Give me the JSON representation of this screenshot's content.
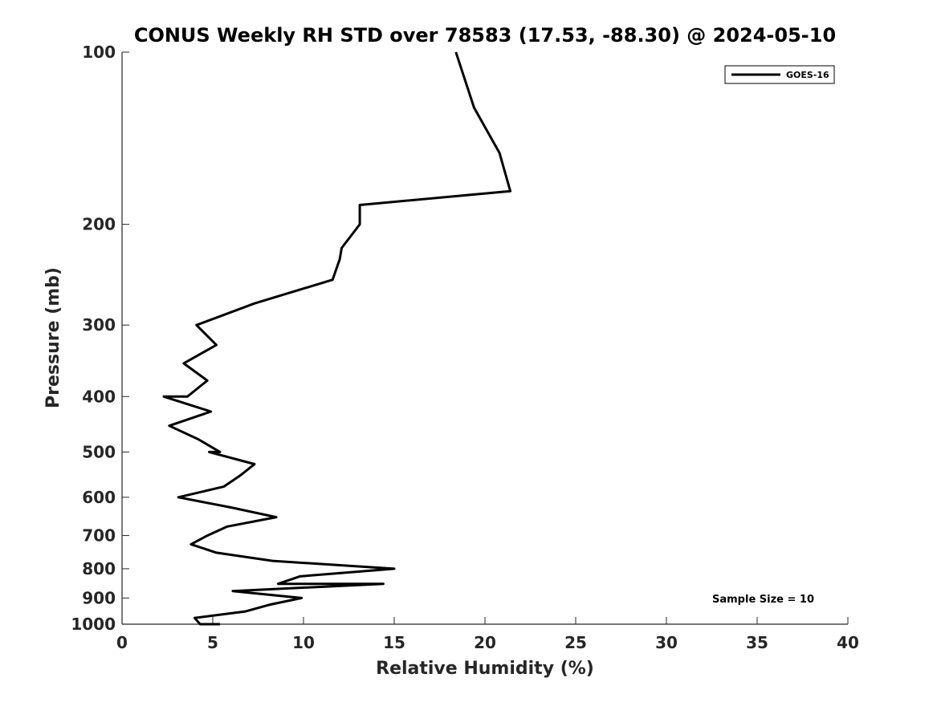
{
  "chart_data": {
    "type": "line",
    "title": "CONUS Weekly RH STD over 78583 (17.53, -88.30) @ 2024-05-10",
    "xlabel": "Relative Humidity (%)",
    "ylabel": "Pressure (mb)",
    "xlim": [
      0,
      40
    ],
    "ylim": [
      100,
      1000
    ],
    "yscale": "log",
    "yreversed": true,
    "xticks": [
      0,
      5,
      10,
      15,
      20,
      25,
      30,
      35,
      40
    ],
    "yticks": [
      100,
      200,
      300,
      400,
      500,
      600,
      700,
      800,
      900,
      1000
    ],
    "grid": false,
    "legend_position": "top-right",
    "series": [
      {
        "name": "GOES-16",
        "color": "#000000",
        "points": [
          [
            18.4,
            100
          ],
          [
            19.4,
            125
          ],
          [
            20.8,
            150
          ],
          [
            21.4,
            175
          ],
          [
            13.1,
            185
          ],
          [
            13.1,
            200
          ],
          [
            12.1,
            220
          ],
          [
            12.0,
            230
          ],
          [
            11.6,
            250
          ],
          [
            7.3,
            275
          ],
          [
            4.1,
            300
          ],
          [
            5.2,
            325
          ],
          [
            3.4,
            350
          ],
          [
            4.7,
            375
          ],
          [
            3.6,
            400
          ],
          [
            2.3,
            400
          ],
          [
            4.9,
            425
          ],
          [
            2.6,
            450
          ],
          [
            4.2,
            475
          ],
          [
            5.4,
            500
          ],
          [
            4.8,
            500
          ],
          [
            7.3,
            525
          ],
          [
            6.5,
            550
          ],
          [
            5.6,
            575
          ],
          [
            3.1,
            600
          ],
          [
            6.0,
            625
          ],
          [
            8.5,
            650
          ],
          [
            5.8,
            675
          ],
          [
            4.7,
            700
          ],
          [
            4.7,
            700
          ],
          [
            3.8,
            725
          ],
          [
            5.2,
            750
          ],
          [
            8.3,
            775
          ],
          [
            15.0,
            800
          ],
          [
            9.8,
            825
          ],
          [
            8.6,
            850
          ],
          [
            14.4,
            850
          ],
          [
            6.1,
            875
          ],
          [
            9.9,
            900
          ],
          [
            8.1,
            925
          ],
          [
            6.8,
            950
          ],
          [
            4.0,
            975
          ],
          [
            4.3,
            1000
          ],
          [
            5.4,
            1000
          ]
        ]
      }
    ],
    "annotations": [
      "Sample Size = 10"
    ]
  }
}
